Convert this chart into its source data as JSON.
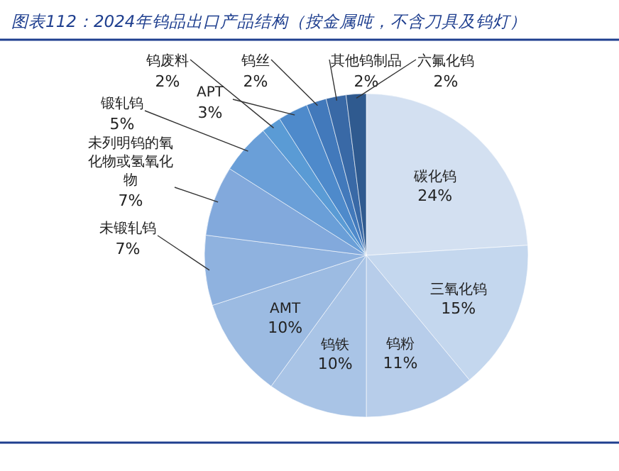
{
  "chart_data": {
    "type": "pie",
    "title": "图表112：2024年钨品出口产品结构（按金属吨，不含刀具及钨灯）",
    "categories": [
      "碳化钨",
      "三氧化钨",
      "钨粉",
      "钨铁",
      "AMT",
      "未锻轧钨",
      "未列明钨的氧化物或氢氧化物",
      "锻轧钨",
      "钨废料",
      "APT",
      "钨丝",
      "其他钨制品",
      "六氟化钨"
    ],
    "values": [
      24,
      15,
      11,
      10,
      10,
      7,
      7,
      5,
      2,
      3,
      2,
      2,
      2
    ],
    "value_labels": [
      "24%",
      "15%",
      "11%",
      "10%",
      "10%",
      "7%",
      "7%",
      "5%",
      "2%",
      "3%",
      "2%",
      "2%",
      "2%"
    ],
    "colors": [
      "#d3e0f1",
      "#c4d7ee",
      "#b7cdea",
      "#a9c4e6",
      "#9cbbe2",
      "#8fb2df",
      "#82a9dc",
      "#6a9fd8",
      "#5a9bd5",
      "#4e8acb",
      "#4279bb",
      "#3969a6",
      "#2f5a8f"
    ]
  }
}
